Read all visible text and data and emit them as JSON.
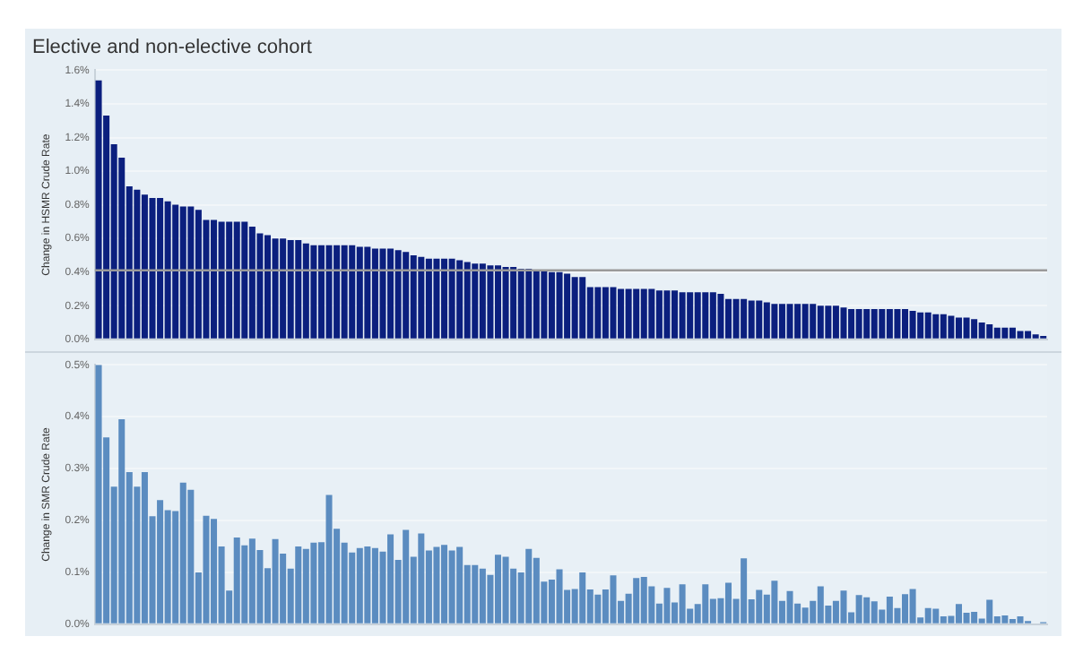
{
  "chart_data": [
    {
      "type": "bar",
      "title": "Elective and non-elective cohort",
      "ylabel": "Change in HSMR Crude Rate",
      "tick_labels": "y",
      "grid": "y",
      "legend": false,
      "categories": [
        null,
        null,
        null,
        null,
        null,
        null,
        null,
        null,
        null,
        null,
        null,
        null,
        null,
        null,
        null,
        null,
        null,
        null,
        null,
        null,
        null,
        null,
        null,
        null,
        null,
        null,
        null,
        null,
        null,
        null,
        null,
        null,
        null,
        null,
        null,
        null,
        null,
        null,
        null,
        null,
        null,
        null,
        null,
        null,
        null,
        null,
        null,
        null,
        null,
        null,
        null,
        null,
        null,
        null,
        null,
        null,
        null,
        null,
        null,
        null,
        null,
        null,
        null,
        null,
        null,
        null,
        null,
        null,
        null,
        null,
        null,
        null,
        null,
        null,
        null,
        null,
        null,
        null,
        null,
        null,
        null,
        null,
        null,
        null,
        null,
        null,
        null,
        null,
        null,
        null,
        null,
        null,
        null,
        null,
        null,
        null,
        null,
        null,
        null,
        null,
        null,
        null,
        null,
        null,
        null,
        null,
        null,
        null,
        null,
        null,
        null,
        null,
        null,
        null,
        null,
        null,
        null,
        null,
        null,
        null,
        null,
        null,
        null,
        null
      ],
      "series": [
        {
          "color": "#0b1f7e",
          "values": [
            1.54,
            1.33,
            1.16,
            1.08,
            0.91,
            0.89,
            0.86,
            0.84,
            0.84,
            0.82,
            0.8,
            0.79,
            0.79,
            0.77,
            0.71,
            0.71,
            0.7,
            0.7,
            0.7,
            0.7,
            0.67,
            0.63,
            0.62,
            0.6,
            0.6,
            0.59,
            0.59,
            0.57,
            0.56,
            0.56,
            0.56,
            0.56,
            0.56,
            0.56,
            0.55,
            0.55,
            0.54,
            0.54,
            0.54,
            0.53,
            0.52,
            0.5,
            0.49,
            0.48,
            0.48,
            0.48,
            0.48,
            0.47,
            0.46,
            0.45,
            0.45,
            0.44,
            0.44,
            0.43,
            0.43,
            0.42,
            0.42,
            0.41,
            0.41,
            0.4,
            0.4,
            0.39,
            0.37,
            0.37,
            0.31,
            0.31,
            0.31,
            0.31,
            0.3,
            0.3,
            0.3,
            0.3,
            0.3,
            0.29,
            0.29,
            0.29,
            0.28,
            0.28,
            0.28,
            0.28,
            0.28,
            0.27,
            0.24,
            0.24,
            0.24,
            0.23,
            0.23,
            0.22,
            0.21,
            0.21,
            0.21,
            0.21,
            0.21,
            0.21,
            0.2,
            0.2,
            0.2,
            0.19,
            0.18,
            0.18,
            0.18,
            0.18,
            0.18,
            0.18,
            0.18,
            0.18,
            0.17,
            0.16,
            0.16,
            0.15,
            0.15,
            0.14,
            0.13,
            0.13,
            0.12,
            0.1,
            0.09,
            0.07,
            0.07,
            0.07,
            0.05,
            0.05,
            0.03,
            0.02
          ]
        }
      ],
      "ylim": [
        0,
        1.6
      ],
      "yticks": [
        {
          "value": 0,
          "label": "0.0%"
        },
        {
          "value": 0.2,
          "label": "0.2%"
        },
        {
          "value": 0.4,
          "label": "0.4%"
        },
        {
          "value": 0.6,
          "label": "0.6%"
        },
        {
          "value": 0.8,
          "label": "0.8%"
        },
        {
          "value": 1.0,
          "label": "1.0%"
        },
        {
          "value": 1.2,
          "label": "1.2%"
        },
        {
          "value": 1.4,
          "label": "1.4%"
        },
        {
          "value": 1.6,
          "label": "1.6%"
        }
      ],
      "ref_lines": [
        {
          "axis": "y",
          "value": 0.41,
          "color": "#9a9a9a"
        }
      ]
    },
    {
      "type": "bar",
      "ylabel": "Change in SMR Crude Rate",
      "tick_labels": "y",
      "grid": "y",
      "legend": false,
      "categories": [
        null,
        null,
        null,
        null,
        null,
        null,
        null,
        null,
        null,
        null,
        null,
        null,
        null,
        null,
        null,
        null,
        null,
        null,
        null,
        null,
        null,
        null,
        null,
        null,
        null,
        null,
        null,
        null,
        null,
        null,
        null,
        null,
        null,
        null,
        null,
        null,
        null,
        null,
        null,
        null,
        null,
        null,
        null,
        null,
        null,
        null,
        null,
        null,
        null,
        null,
        null,
        null,
        null,
        null,
        null,
        null,
        null,
        null,
        null,
        null,
        null,
        null,
        null,
        null,
        null,
        null,
        null,
        null,
        null,
        null,
        null,
        null,
        null,
        null,
        null,
        null,
        null,
        null,
        null,
        null,
        null,
        null,
        null,
        null,
        null,
        null,
        null,
        null,
        null,
        null,
        null,
        null,
        null,
        null,
        null,
        null,
        null,
        null,
        null,
        null,
        null,
        null,
        null,
        null,
        null,
        null,
        null,
        null,
        null,
        null,
        null,
        null,
        null,
        null,
        null,
        null,
        null,
        null,
        null,
        null,
        null,
        null,
        null,
        null
      ],
      "series": [
        {
          "color": "#5b8cc0",
          "values": [
            0.5,
            0.36,
            0.265,
            0.395,
            0.293,
            0.265,
            0.293,
            0.208,
            0.239,
            0.22,
            0.218,
            0.273,
            0.259,
            0.1,
            0.209,
            0.203,
            0.15,
            0.065,
            0.167,
            0.152,
            0.165,
            0.143,
            0.108,
            0.164,
            0.136,
            0.107,
            0.15,
            0.145,
            0.157,
            0.158,
            0.249,
            0.184,
            0.157,
            0.138,
            0.147,
            0.15,
            0.147,
            0.14,
            0.173,
            0.124,
            0.182,
            0.13,
            0.175,
            0.142,
            0.149,
            0.153,
            0.142,
            0.149,
            0.114,
            0.114,
            0.107,
            0.095,
            0.134,
            0.13,
            0.107,
            0.1,
            0.145,
            0.128,
            0.082,
            0.086,
            0.106,
            0.066,
            0.068,
            0.1,
            0.067,
            0.057,
            0.067,
            0.094,
            0.045,
            0.059,
            0.089,
            0.091,
            0.073,
            0.04,
            0.07,
            0.042,
            0.077,
            0.03,
            0.039,
            0.077,
            0.049,
            0.05,
            0.08,
            0.049,
            0.127,
            0.048,
            0.066,
            0.057,
            0.084,
            0.045,
            0.064,
            0.04,
            0.032,
            0.045,
            0.073,
            0.036,
            0.045,
            0.065,
            0.023,
            0.056,
            0.052,
            0.044,
            0.028,
            0.053,
            0.031,
            0.058,
            0.068,
            0.013,
            0.031,
            0.03,
            0.015,
            0.016,
            0.039,
            0.022,
            0.024,
            0.011,
            0.047,
            0.015,
            0.017,
            0.01,
            0.015,
            0.006,
            0.002,
            0.004
          ]
        }
      ],
      "ylim": [
        0,
        0.5
      ],
      "yticks": [
        {
          "value": 0,
          "label": "0.0%"
        },
        {
          "value": 0.1,
          "label": "0.1%"
        },
        {
          "value": 0.2,
          "label": "0.2%"
        },
        {
          "value": 0.3,
          "label": "0.3%"
        },
        {
          "value": 0.4,
          "label": "0.4%"
        },
        {
          "value": 0.5,
          "label": "0.5%"
        }
      ]
    }
  ]
}
